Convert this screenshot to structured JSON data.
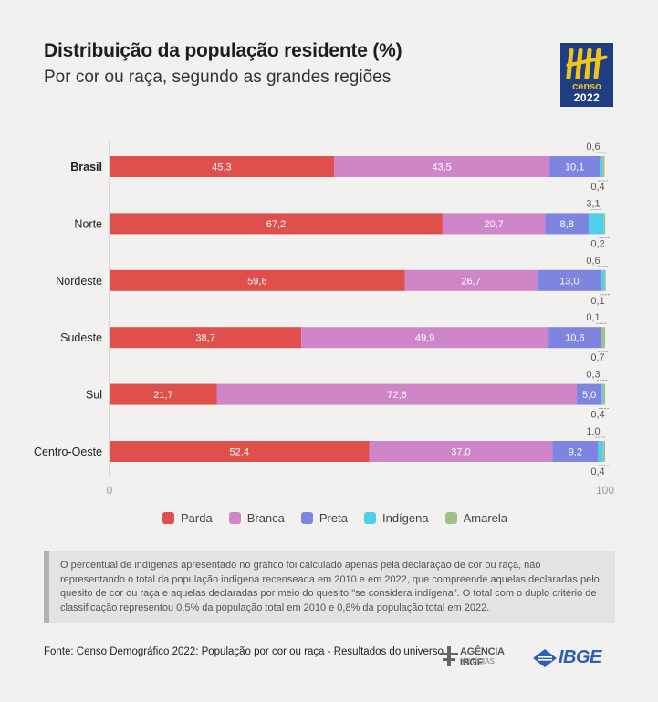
{
  "header": {
    "title": "Distribuição da população residente (%)",
    "subtitle": "Por cor ou raça, segundo as grandes regiões"
  },
  "logo": {
    "line1": "censo",
    "line2": "2022"
  },
  "chart_data": {
    "type": "bar",
    "orientation": "horizontal",
    "stacked": true,
    "categories": [
      "Brasil",
      "Norte",
      "Nordeste",
      "Sudeste",
      "Sul",
      "Centro-Oeste"
    ],
    "bold_categories": [
      "Brasil"
    ],
    "xlim": [
      0,
      100
    ],
    "x_ticks": [
      "0",
      "100"
    ],
    "series": [
      {
        "name": "Parda",
        "color": "#df4f4b",
        "values": [
          45.3,
          67.2,
          59.6,
          38.7,
          21.7,
          52.4
        ],
        "labels": [
          "45,3",
          "67,2",
          "59,6",
          "38,7",
          "21,7",
          "52,4"
        ]
      },
      {
        "name": "Branca",
        "color": "#cf86c8",
        "values": [
          43.5,
          20.7,
          26.7,
          49.9,
          72.6,
          37.0
        ],
        "labels": [
          "43,5",
          "20,7",
          "26,7",
          "49,9",
          "72,6",
          "37,0"
        ]
      },
      {
        "name": "Preta",
        "color": "#7e85e0",
        "values": [
          10.1,
          8.8,
          13.0,
          10.6,
          5.0,
          9.2
        ],
        "labels": [
          "10,1",
          "8,8",
          "13,0",
          "10,6",
          "5,0",
          "9,2"
        ]
      },
      {
        "name": "Indígena",
        "color": "#4fd0ea",
        "values": [
          0.6,
          3.1,
          0.6,
          0.1,
          0.3,
          1.0
        ],
        "labels": [
          "0,6",
          "3,1",
          "0,6",
          "0,1",
          "0,3",
          "1,0"
        ]
      },
      {
        "name": "Amarela",
        "color": "#a3c088",
        "values": [
          0.4,
          0.2,
          0.1,
          0.7,
          0.4,
          0.4
        ],
        "labels": [
          "0,4",
          "0,2",
          "0,1",
          "0,7",
          "0,4",
          "0,4"
        ]
      }
    ],
    "legend_position": "bottom",
    "grid": false
  },
  "note": "O percentual de indígenas apresentado no gráfico foi calculado apenas pela declaração de cor ou raça, não representando o total da população indígena recenseada em 2010 e em 2022, que compreende aquelas declaradas pelo quesito de cor ou raça e aquelas declaradas por meio do quesito \"se considera indígena\". O total com o duplo critério de classificação representou 0,5% da população total em 2010 e 0,8% da população total em 2022.",
  "footer": {
    "source": "Fonte: Censo Demográfico 2022: População por cor ou raça - Resultados do universo",
    "agencia_line1": "AGÊNCIA IBGE",
    "agencia_line2": "NOTÍCIAS",
    "ibge": "IBGE"
  },
  "colors": {
    "background": "#f3f1ef",
    "ibge_blue": "#2f5fb3",
    "logo_blue": "#1f3d83",
    "logo_yellow": "#f2c31a"
  }
}
